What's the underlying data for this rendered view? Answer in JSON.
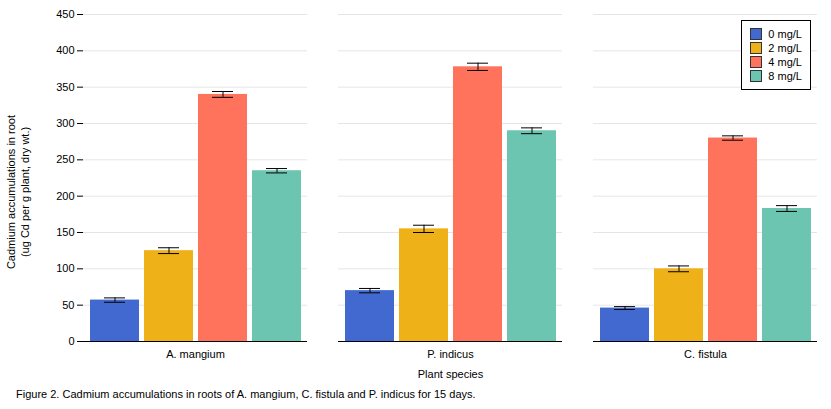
{
  "chart_data": {
    "type": "bar",
    "categories": [
      "A. mangium",
      "P. indicus",
      "C. fistula"
    ],
    "series": [
      {
        "name": "0 mg/L",
        "values": [
          57,
          70,
          46
        ],
        "errors": [
          3,
          3,
          2
        ]
      },
      {
        "name": "2 mg/L",
        "values": [
          125,
          155,
          100
        ],
        "errors": [
          4,
          5,
          4
        ]
      },
      {
        "name": "4 mg/L",
        "values": [
          340,
          378,
          280
        ],
        "errors": [
          4,
          5,
          3
        ]
      },
      {
        "name": "8 mg/L",
        "values": [
          235,
          290,
          183
        ],
        "errors": [
          3,
          4,
          4
        ]
      }
    ],
    "xlabel": "Plant species",
    "ylabel": "Cadmium accumulations in root\n(ug Cd per g plant, dry wt.)",
    "ylim": [
      0,
      450
    ],
    "yticks": [
      0,
      50,
      100,
      150,
      200,
      250,
      300,
      350,
      400,
      450
    ],
    "grid": true,
    "legend": "upper right",
    "caption": "Figure 2. Cadmium accumulations in roots of A. mangium, C. fistula and P. indicus for 15 days."
  }
}
